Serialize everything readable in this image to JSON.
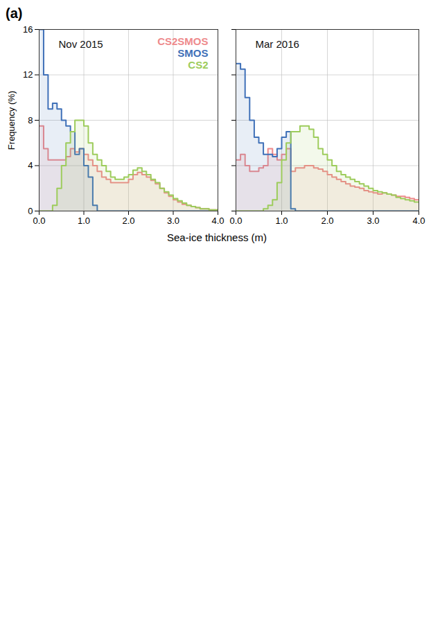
{
  "panel_label": "(a)",
  "xlabel": "Sea-ice thickness (m)",
  "chart_data": [
    {
      "type": "histogram",
      "title": "Nov 2015",
      "ylabel": "Frequency (%)",
      "bins": [
        0,
        0.1,
        0.2,
        0.3,
        0.4,
        0.5,
        0.6,
        0.7,
        0.8,
        0.9,
        1.0,
        1.1,
        1.2,
        1.3,
        1.4,
        1.5,
        1.6,
        1.7,
        1.8,
        1.9,
        2.0,
        2.1,
        2.2,
        2.3,
        2.4,
        2.5,
        2.6,
        2.7,
        2.8,
        2.9,
        3.0,
        3.1,
        3.2,
        3.3,
        3.4,
        3.5,
        3.6,
        3.7,
        3.8,
        3.9,
        4.0
      ],
      "series": [
        {
          "name": "CS2SMOS",
          "color": "#ee8a8c",
          "values": [
            7.5,
            5.5,
            4.5,
            4.5,
            4.5,
            4.5,
            4.8,
            5.5,
            5.2,
            5.5,
            5,
            4.5,
            4,
            3.5,
            3,
            2.8,
            2.5,
            2.5,
            2.5,
            2.5,
            2.8,
            3.2,
            3.4,
            3.2,
            3,
            2.7,
            2.4,
            2,
            1.6,
            1.3,
            1,
            0.8,
            0.6,
            0.5,
            0.4,
            0.3,
            0.2,
            0.2,
            0.1,
            0.1
          ]
        },
        {
          "name": "SMOS",
          "color": "#3f70b8",
          "values": [
            16,
            12,
            9,
            9.5,
            9,
            8,
            7.5,
            7,
            5,
            5.5,
            4,
            3,
            0.5,
            0,
            0,
            0,
            0,
            0,
            0,
            0,
            0,
            0,
            0,
            0,
            0,
            0,
            0,
            0,
            0,
            0,
            0,
            0,
            0,
            0,
            0,
            0,
            0,
            0,
            0,
            0
          ]
        },
        {
          "name": "CS2",
          "color": "#9dcc5c",
          "values": [
            0,
            0,
            0,
            0.5,
            2,
            4,
            6,
            7,
            8,
            8,
            7.5,
            6,
            5,
            4.5,
            4,
            3.5,
            3,
            2.8,
            2.8,
            3,
            3.2,
            3.6,
            3.8,
            3.5,
            3.2,
            2.8,
            2.5,
            2,
            1.7,
            1.4,
            1.1,
            0.9,
            0.7,
            0.5,
            0.4,
            0.3,
            0.2,
            0.2,
            0.1,
            0.1
          ]
        }
      ],
      "xlim": [
        0,
        4
      ],
      "xticks": [
        0,
        1,
        2,
        3,
        4
      ],
      "ylim": [
        0,
        16
      ],
      "yticks": [
        0,
        4,
        8,
        12,
        16
      ],
      "grid": true,
      "legend": "top-right"
    },
    {
      "type": "histogram",
      "title": "Mar 2016",
      "bins": [
        0,
        0.1,
        0.2,
        0.3,
        0.4,
        0.5,
        0.6,
        0.7,
        0.8,
        0.9,
        1.0,
        1.1,
        1.2,
        1.3,
        1.4,
        1.5,
        1.6,
        1.7,
        1.8,
        1.9,
        2.0,
        2.1,
        2.2,
        2.3,
        2.4,
        2.5,
        2.6,
        2.7,
        2.8,
        2.9,
        3.0,
        3.1,
        3.2,
        3.3,
        3.4,
        3.5,
        3.6,
        3.7,
        3.8,
        3.9,
        4.0
      ],
      "series": [
        {
          "name": "CS2SMOS",
          "color": "#ee8a8c",
          "values": [
            4.5,
            5,
            4,
            3.5,
            3.5,
            3.8,
            4,
            5.5,
            5,
            4.5,
            5,
            5.5,
            3.5,
            3.8,
            3.8,
            4,
            4,
            3.8,
            3.7,
            3.5,
            3.2,
            3,
            2.8,
            2.6,
            2.4,
            2.2,
            2.1,
            2,
            1.8,
            1.7,
            1.6,
            1.5,
            1.6,
            1.5,
            1.4,
            1.3,
            1.3,
            1.2,
            1.1,
            1
          ]
        },
        {
          "name": "SMOS",
          "color": "#3f70b8",
          "values": [
            13,
            12.5,
            10,
            8,
            6.5,
            6,
            5,
            5,
            4.8,
            5.5,
            6.5,
            7,
            0.2,
            0,
            0,
            0,
            0,
            0,
            0,
            0,
            0,
            0,
            0,
            0,
            0,
            0,
            0,
            0,
            0,
            0,
            0,
            0,
            0,
            0,
            0,
            0,
            0,
            0,
            0,
            0
          ]
        },
        {
          "name": "CS2",
          "color": "#9dcc5c",
          "values": [
            0,
            0,
            0,
            0,
            0,
            0,
            0.2,
            0.5,
            1,
            2.5,
            4.5,
            6,
            7,
            7,
            7.5,
            7.5,
            7.2,
            6.5,
            5.5,
            5,
            4.5,
            4,
            3.5,
            3.2,
            3,
            2.8,
            2.6,
            2.4,
            2.2,
            2,
            1.8,
            1.7,
            1.6,
            1.5,
            1.4,
            1.2,
            1.1,
            1,
            0.9,
            0.8
          ]
        }
      ],
      "xlim": [
        0,
        4
      ],
      "xticks": [
        0,
        1,
        2,
        3,
        4
      ],
      "ylim": [
        0,
        16
      ],
      "yticks": [
        0,
        4,
        8,
        12,
        16
      ],
      "grid": true,
      "tick_labels": "x"
    }
  ]
}
